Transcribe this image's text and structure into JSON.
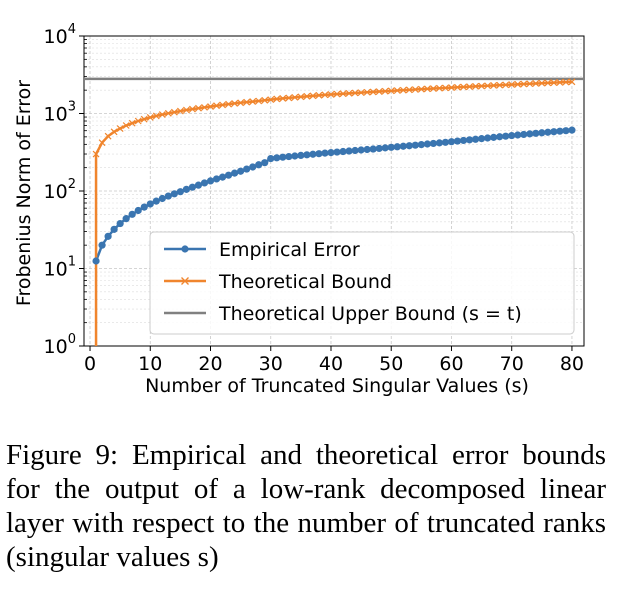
{
  "chart_data": {
    "type": "line",
    "xlabel": "Number of Truncated Singular Values (s)",
    "ylabel": "Frobenius Norm of Error",
    "yscale": "log",
    "xlim": [
      -1,
      82
    ],
    "ylim": [
      1,
      10000
    ],
    "x_ticks": [
      "0",
      "10",
      "20",
      "30",
      "40",
      "50",
      "60",
      "70",
      "80"
    ],
    "y_ticks": [
      {
        "base": "10",
        "exp": "0"
      },
      {
        "base": "10",
        "exp": "1"
      },
      {
        "base": "10",
        "exp": "2"
      },
      {
        "base": "10",
        "exp": "3"
      },
      {
        "base": "10",
        "exp": "4"
      }
    ],
    "grid": true,
    "legend_position": "lower-right",
    "series": [
      {
        "name": "Empirical Error",
        "color": "#3a75b0",
        "marker": "circle",
        "x": [
          1,
          2,
          3,
          4,
          5,
          6,
          7,
          8,
          9,
          10,
          11,
          12,
          13,
          14,
          15,
          16,
          17,
          18,
          19,
          20,
          21,
          22,
          23,
          24,
          25,
          26,
          27,
          28,
          29,
          30,
          31,
          32,
          33,
          34,
          35,
          36,
          37,
          38,
          39,
          40,
          41,
          42,
          43,
          44,
          45,
          46,
          47,
          48,
          49,
          50,
          51,
          52,
          53,
          54,
          55,
          56,
          57,
          58,
          59,
          60,
          61,
          62,
          63,
          64,
          65,
          66,
          67,
          68,
          69,
          70,
          71,
          72,
          73,
          74,
          75,
          76,
          77,
          78,
          79,
          80
        ],
        "y": [
          12.5,
          20,
          26,
          32,
          38,
          44,
          50,
          56,
          62,
          68,
          74,
          80,
          86,
          92,
          98,
          105,
          112,
          119,
          127,
          135,
          143,
          151,
          160,
          170,
          180,
          192,
          204,
          218,
          232,
          262,
          268,
          273,
          278,
          283,
          288,
          293,
          298,
          303,
          308,
          313,
          318,
          323,
          328,
          333,
          338,
          343,
          348,
          354,
          360,
          366,
          372,
          378,
          384,
          390,
          397,
          404,
          411,
          418,
          425,
          433,
          441,
          449,
          457,
          465,
          474,
          483,
          492,
          501,
          510,
          519,
          528,
          537,
          546,
          555,
          564,
          573,
          582,
          591,
          600,
          610
        ]
      },
      {
        "name": "Theoretical Bound",
        "color": "#f0852d",
        "marker": "x",
        "x": [
          1,
          2,
          3,
          4,
          5,
          6,
          7,
          8,
          9,
          10,
          11,
          12,
          13,
          14,
          15,
          16,
          17,
          18,
          19,
          20,
          21,
          22,
          23,
          24,
          25,
          26,
          27,
          28,
          29,
          30,
          31,
          32,
          33,
          34,
          35,
          36,
          37,
          38,
          39,
          40,
          41,
          42,
          43,
          44,
          45,
          46,
          47,
          48,
          49,
          50,
          51,
          52,
          53,
          54,
          55,
          56,
          57,
          58,
          59,
          60,
          61,
          62,
          63,
          64,
          65,
          66,
          67,
          68,
          69,
          70,
          71,
          72,
          73,
          74,
          75,
          76,
          77,
          78,
          79,
          80
        ],
        "y": [
          300,
          420,
          510,
          580,
          640,
          700,
          750,
          800,
          845,
          890,
          930,
          970,
          1005,
          1040,
          1075,
          1110,
          1140,
          1170,
          1200,
          1230,
          1260,
          1290,
          1320,
          1350,
          1375,
          1400,
          1425,
          1450,
          1480,
          1510,
          1540,
          1565,
          1590,
          1615,
          1640,
          1665,
          1690,
          1715,
          1740,
          1760,
          1780,
          1800,
          1820,
          1840,
          1860,
          1880,
          1900,
          1920,
          1940,
          1960,
          1980,
          2000,
          2020,
          2040,
          2060,
          2080,
          2100,
          2120,
          2140,
          2160,
          2180,
          2200,
          2220,
          2240,
          2260,
          2280,
          2300,
          2320,
          2340,
          2360,
          2380,
          2400,
          2420,
          2440,
          2460,
          2480,
          2500,
          2520,
          2540,
          2560
        ]
      },
      {
        "name": "Theoretical Upper Bound",
        "name_tail": "(s = t)",
        "color": "#808080",
        "marker": "none",
        "y_const": 2800
      }
    ]
  },
  "caption": {
    "text": "Figure 9:  Empirical and theoretical error bounds for the output of a low-rank decomposed linear layer with respect to the number of truncated ranks (singular values s)"
  }
}
